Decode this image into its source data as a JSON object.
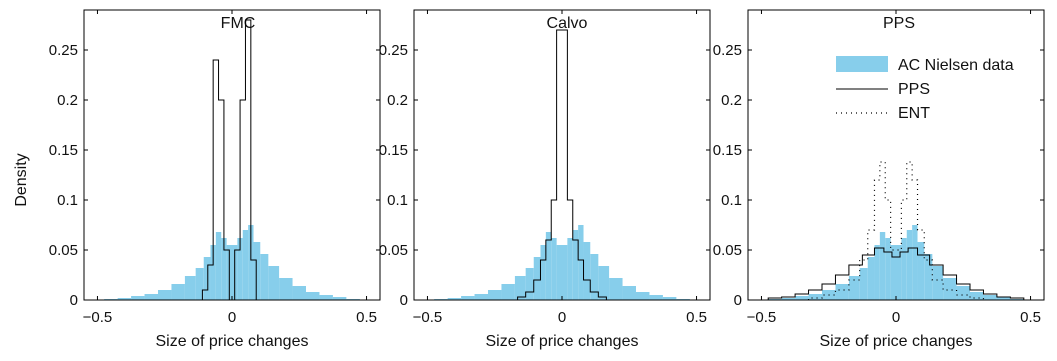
{
  "figure": {
    "ylabel": "Density"
  },
  "colors": {
    "data_fill": "#87ceeb",
    "model_line": "#000000",
    "axis": "#000000"
  },
  "chart_data": [
    {
      "type": "histogram",
      "title": "FMC",
      "xlabel": "Size of price changes",
      "ylabel": "Density",
      "xlim": [
        -0.55,
        0.55
      ],
      "ylim": [
        0,
        0.29
      ],
      "xticks": [
        -0.5,
        0,
        0.5
      ],
      "xtick_labels": [
        "−0.5",
        "0",
        "0.5"
      ],
      "yticks": [
        0,
        0.05,
        0.1,
        0.15,
        0.2,
        0.25
      ],
      "ytick_labels": [
        "0",
        "0.05",
        "0.1",
        "0.15",
        "0.2",
        "0.25"
      ],
      "grid": false,
      "series": [
        {
          "style": "bars",
          "bins": [
            [
              -0.45,
              0.001
            ],
            [
              -0.4,
              0.002
            ],
            [
              -0.35,
              0.004
            ],
            [
              -0.3,
              0.006
            ],
            [
              -0.25,
              0.01
            ],
            [
              -0.2,
              0.016
            ],
            [
              -0.15,
              0.024
            ],
            [
              -0.12,
              0.032
            ],
            [
              -0.09,
              0.043
            ],
            [
              -0.07,
              0.055
            ],
            [
              -0.05,
              0.068
            ],
            [
              -0.03,
              0.062
            ],
            [
              -0.01,
              0.055
            ],
            [
              0.01,
              0.055
            ],
            [
              0.03,
              0.062
            ],
            [
              0.05,
              0.07
            ],
            [
              0.07,
              0.075
            ],
            [
              0.09,
              0.058
            ],
            [
              0.12,
              0.046
            ],
            [
              0.15,
              0.034
            ],
            [
              0.2,
              0.022
            ],
            [
              0.25,
              0.014
            ],
            [
              0.3,
              0.008
            ],
            [
              0.35,
              0.005
            ],
            [
              0.4,
              0.003
            ],
            [
              0.45,
              0.001
            ]
          ]
        },
        {
          "style": "step",
          "bins": [
            [
              -0.1,
              0.01
            ],
            [
              -0.08,
              0.035
            ],
            [
              -0.06,
              0.24
            ],
            [
              -0.04,
              0.2
            ],
            [
              -0.02,
              0.05
            ],
            [
              0,
              0.0
            ],
            [
              0.02,
              0.05
            ],
            [
              0.04,
              0.2
            ],
            [
              0.06,
              0.28
            ],
            [
              0.08,
              0.04
            ],
            [
              0.1,
              0.0
            ]
          ]
        }
      ]
    },
    {
      "type": "histogram",
      "title": "Calvo",
      "xlabel": "Size of price changes",
      "xlim": [
        -0.55,
        0.55
      ],
      "ylim": [
        0,
        0.29
      ],
      "xticks": [
        -0.5,
        0,
        0.5
      ],
      "xtick_labels": [
        "−0.5",
        "0",
        "0.5"
      ],
      "yticks": [
        0,
        0.05,
        0.1,
        0.15,
        0.2,
        0.25
      ],
      "ytick_labels": [
        "0",
        "0.05",
        "0.1",
        "0.15",
        "0.2",
        "0.25"
      ],
      "grid": false,
      "series": [
        {
          "style": "bars",
          "bins": [
            [
              -0.45,
              0.001
            ],
            [
              -0.4,
              0.002
            ],
            [
              -0.35,
              0.004
            ],
            [
              -0.3,
              0.006
            ],
            [
              -0.25,
              0.01
            ],
            [
              -0.2,
              0.016
            ],
            [
              -0.15,
              0.024
            ],
            [
              -0.12,
              0.032
            ],
            [
              -0.09,
              0.043
            ],
            [
              -0.07,
              0.055
            ],
            [
              -0.05,
              0.068
            ],
            [
              -0.03,
              0.062
            ],
            [
              -0.01,
              0.055
            ],
            [
              0.01,
              0.055
            ],
            [
              0.03,
              0.062
            ],
            [
              0.05,
              0.07
            ],
            [
              0.07,
              0.075
            ],
            [
              0.09,
              0.058
            ],
            [
              0.12,
              0.046
            ],
            [
              0.15,
              0.034
            ],
            [
              0.2,
              0.022
            ],
            [
              0.25,
              0.014
            ],
            [
              0.3,
              0.008
            ],
            [
              0.35,
              0.005
            ],
            [
              0.4,
              0.003
            ],
            [
              0.45,
              0.001
            ]
          ]
        },
        {
          "style": "step",
          "bins": [
            [
              -0.15,
              0.003
            ],
            [
              -0.12,
              0.008
            ],
            [
              -0.09,
              0.02
            ],
            [
              -0.07,
              0.04
            ],
            [
              -0.05,
              0.06
            ],
            [
              -0.03,
              0.1
            ],
            [
              -0.01,
              0.27
            ],
            [
              0.01,
              0.27
            ],
            [
              0.03,
              0.1
            ],
            [
              0.05,
              0.06
            ],
            [
              0.07,
              0.04
            ],
            [
              0.09,
              0.02
            ],
            [
              0.12,
              0.008
            ],
            [
              0.15,
              0.003
            ]
          ]
        }
      ]
    },
    {
      "type": "histogram",
      "title": "PPS",
      "xlabel": "Size of price changes",
      "xlim": [
        -0.55,
        0.55
      ],
      "ylim": [
        0,
        0.29
      ],
      "xticks": [
        -0.5,
        0,
        0.5
      ],
      "xtick_labels": [
        "−0.5",
        "0",
        "0.5"
      ],
      "yticks": [
        0,
        0.05,
        0.1,
        0.15,
        0.2,
        0.25
      ],
      "ytick_labels": [
        "0",
        "0.05",
        "0.1",
        "0.15",
        "0.2",
        "0.25"
      ],
      "grid": false,
      "legend": {
        "placement": "top-right",
        "entries": [
          "AC Nielsen data",
          "PPS",
          "ENT"
        ]
      },
      "series": [
        {
          "name": "AC Nielsen data",
          "style": "bars",
          "bins": [
            [
              -0.45,
              0.001
            ],
            [
              -0.4,
              0.002
            ],
            [
              -0.35,
              0.004
            ],
            [
              -0.3,
              0.006
            ],
            [
              -0.25,
              0.01
            ],
            [
              -0.2,
              0.016
            ],
            [
              -0.15,
              0.024
            ],
            [
              -0.12,
              0.032
            ],
            [
              -0.09,
              0.043
            ],
            [
              -0.07,
              0.055
            ],
            [
              -0.05,
              0.068
            ],
            [
              -0.03,
              0.062
            ],
            [
              -0.01,
              0.055
            ],
            [
              0.01,
              0.055
            ],
            [
              0.03,
              0.062
            ],
            [
              0.05,
              0.07
            ],
            [
              0.07,
              0.075
            ],
            [
              0.09,
              0.058
            ],
            [
              0.12,
              0.046
            ],
            [
              0.15,
              0.034
            ],
            [
              0.2,
              0.022
            ],
            [
              0.25,
              0.014
            ],
            [
              0.3,
              0.008
            ],
            [
              0.35,
              0.005
            ],
            [
              0.4,
              0.003
            ],
            [
              0.45,
              0.001
            ]
          ]
        },
        {
          "name": "PPS",
          "style": "step",
          "bins": [
            [
              -0.45,
              0.002
            ],
            [
              -0.4,
              0.003
            ],
            [
              -0.35,
              0.006
            ],
            [
              -0.3,
              0.01
            ],
            [
              -0.25,
              0.016
            ],
            [
              -0.2,
              0.025
            ],
            [
              -0.15,
              0.035
            ],
            [
              -0.1,
              0.045
            ],
            [
              -0.06,
              0.052
            ],
            [
              -0.03,
              0.048
            ],
            [
              0,
              0.043
            ],
            [
              0.03,
              0.048
            ],
            [
              0.06,
              0.052
            ],
            [
              0.1,
              0.045
            ],
            [
              0.15,
              0.035
            ],
            [
              0.2,
              0.025
            ],
            [
              0.25,
              0.016
            ],
            [
              0.3,
              0.01
            ],
            [
              0.35,
              0.006
            ],
            [
              0.4,
              0.003
            ],
            [
              0.45,
              0.002
            ]
          ]
        },
        {
          "name": "ENT",
          "style": "dotted-step",
          "bins": [
            [
              -0.3,
              0.002
            ],
            [
              -0.25,
              0.005
            ],
            [
              -0.2,
              0.01
            ],
            [
              -0.15,
              0.02
            ],
            [
              -0.12,
              0.04
            ],
            [
              -0.09,
              0.07
            ],
            [
              -0.07,
              0.12
            ],
            [
              -0.05,
              0.138
            ],
            [
              -0.03,
              0.1
            ],
            [
              -0.01,
              0.05
            ],
            [
              0.01,
              0.05
            ],
            [
              0.03,
              0.1
            ],
            [
              0.05,
              0.138
            ],
            [
              0.07,
              0.12
            ],
            [
              0.09,
              0.07
            ],
            [
              0.12,
              0.04
            ],
            [
              0.15,
              0.02
            ],
            [
              0.2,
              0.01
            ],
            [
              0.25,
              0.005
            ],
            [
              0.3,
              0.002
            ]
          ]
        }
      ]
    }
  ]
}
